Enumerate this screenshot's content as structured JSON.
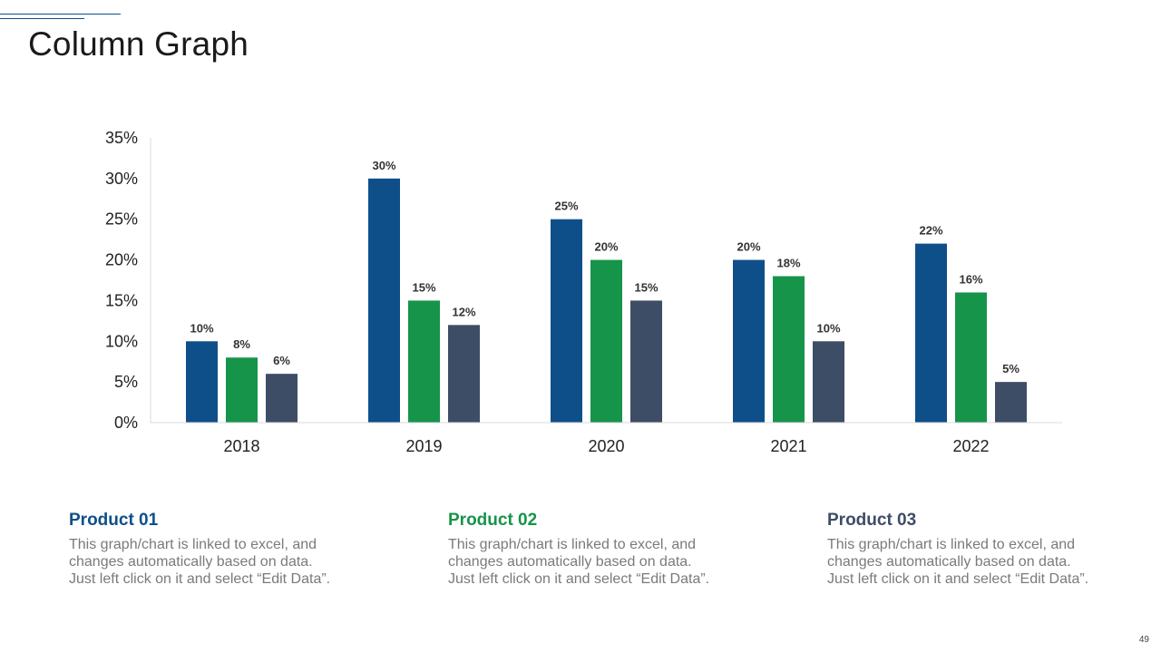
{
  "slide": {
    "title": "Column Graph",
    "page_number": "49"
  },
  "colors": {
    "product_01": "#0e4f8a",
    "product_02": "#16944a",
    "product_03": "#3e4d66",
    "axis": "#d9d9d9"
  },
  "chart_data": {
    "type": "bar",
    "title": "",
    "xlabel": "",
    "ylabel": "",
    "categories": [
      "2018",
      "2019",
      "2020",
      "2021",
      "2022"
    ],
    "series": [
      {
        "name": "Product 01",
        "values": [
          10,
          30,
          25,
          20,
          22
        ],
        "labels": [
          "10%",
          "30%",
          "25%",
          "20%",
          "22%"
        ]
      },
      {
        "name": "Product 02",
        "values": [
          8,
          15,
          20,
          18,
          16
        ],
        "labels": [
          "8%",
          "15%",
          "20%",
          "18%",
          "16%"
        ]
      },
      {
        "name": "Product 03",
        "values": [
          6,
          12,
          15,
          10,
          5
        ],
        "labels": [
          "6%",
          "12%",
          "15%",
          "10%",
          "5%"
        ]
      }
    ],
    "ylim": [
      0,
      35
    ],
    "yticks": [
      0,
      5,
      10,
      15,
      20,
      25,
      30,
      35
    ],
    "ytick_labels": [
      "0%",
      "5%",
      "10%",
      "15%",
      "20%",
      "25%",
      "30%",
      "35%"
    ],
    "grid": false,
    "legend": "none"
  },
  "products": [
    {
      "name": "Product 01",
      "description": [
        "This graph/chart is linked to excel, and",
        "changes automatically based on data.",
        "Just left click on it and select “Edit Data”."
      ]
    },
    {
      "name": "Product 02",
      "description": [
        "This graph/chart is linked to excel, and",
        "changes automatically based on data.",
        "Just left click on it and select “Edit Data”."
      ]
    },
    {
      "name": "Product 03",
      "description": [
        "This graph/chart is linked to excel, and",
        "changes automatically based on data.",
        "Just left click on it and select “Edit Data”."
      ]
    }
  ]
}
